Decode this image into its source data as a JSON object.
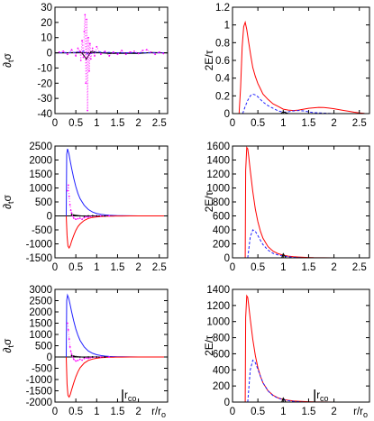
{
  "chart_data": [
    {
      "type": "line",
      "ylabel": "∂tσ",
      "xlabel": "",
      "xlim": [
        0,
        2.7
      ],
      "ylim": [
        -40,
        30
      ],
      "xticks": [
        0,
        0.5,
        1,
        1.5,
        2,
        2.5
      ],
      "xtick_labels": [
        "0",
        "0.5",
        "1",
        "1.5",
        "2",
        "2.5"
      ],
      "yticks": [
        -40,
        -30,
        -20,
        -10,
        0,
        10,
        20,
        30
      ],
      "ytick_labels": [
        "-40",
        "-30",
        "-20",
        "-10",
        "0",
        "10",
        "20",
        "30"
      ],
      "series": [
        {
          "color": "#000000",
          "style": "solid",
          "x": [
            0,
            0.25,
            0.5,
            0.62,
            0.7,
            0.75,
            0.8,
            0.85,
            0.9,
            1,
            1.3,
            1.6,
            2,
            2.3,
            2.7
          ],
          "y": [
            0,
            0,
            0.2,
            0.5,
            -2,
            -4.2,
            -2,
            0.5,
            1,
            0.3,
            -0.5,
            -0.3,
            -0.5,
            0.2,
            0
          ]
        },
        {
          "color": "#2020ff",
          "style": "dashed",
          "x": [
            0,
            0.5,
            0.7,
            0.8,
            1,
            1.5,
            2.7
          ],
          "y": [
            0,
            0.2,
            1,
            -1,
            0.5,
            0,
            0
          ]
        },
        {
          "color": "#ff00ff",
          "style": "dots",
          "x": [
            0.1,
            0.2,
            0.3,
            0.4,
            0.5,
            0.55,
            0.6,
            0.62,
            0.65,
            0.68,
            0.7,
            0.72,
            0.74,
            0.76,
            0.78,
            0.8,
            0.82,
            0.84,
            0.86,
            0.9,
            0.95,
            1.0,
            1.1,
            1.2,
            1.3,
            1.4,
            1.5,
            1.6,
            1.7,
            1.8,
            1.9,
            2.0,
            2.1,
            2.2,
            2.3,
            2.4,
            2.5,
            2.6
          ],
          "y": [
            0.5,
            1,
            -1,
            2,
            -2,
            3,
            1,
            -5,
            8,
            -3,
            14,
            25,
            -20,
            22,
            -38,
            10,
            -12,
            6,
            -4,
            3,
            -2,
            4,
            -1,
            1,
            -2,
            0.5,
            -1,
            1.5,
            -1,
            0.5,
            1,
            -0.5,
            1.5,
            2,
            0.5,
            -1,
            0.5,
            -0.5
          ]
        }
      ]
    },
    {
      "type": "line",
      "ylabel": "2E/τ",
      "xlabel": "",
      "xlim": [
        0,
        2.7
      ],
      "ylim": [
        0,
        1.2
      ],
      "xticks": [
        0,
        0.5,
        1,
        1.5,
        2,
        2.5
      ],
      "xtick_labels": [
        "0",
        "0.5",
        "1",
        "1.5",
        "2",
        "2.5"
      ],
      "yticks": [
        0,
        0.2,
        0.4,
        0.6,
        0.8,
        1,
        1.2
      ],
      "ytick_labels": [
        "0",
        "0.2",
        "0.4",
        "0.6",
        "0.8",
        "1",
        "1.2"
      ],
      "series": [
        {
          "color": "#ff0000",
          "style": "solid",
          "x": [
            0.13,
            0.16,
            0.19,
            0.22,
            0.25,
            0.28,
            0.32,
            0.36,
            0.4,
            0.45,
            0.5,
            0.55,
            0.6,
            0.7,
            0.8,
            0.9,
            1.0,
            1.1,
            1.2,
            1.3,
            1.4,
            1.5,
            1.6,
            1.7,
            1.8,
            1.9,
            2.0,
            2.1,
            2.2,
            2.3,
            2.4,
            2.5,
            2.6
          ],
          "y": [
            0,
            0.3,
            0.75,
            0.98,
            1.03,
            0.95,
            0.8,
            0.65,
            0.52,
            0.42,
            0.34,
            0.28,
            0.22,
            0.16,
            0.11,
            0.08,
            0.05,
            0.04,
            0.035,
            0.04,
            0.05,
            0.06,
            0.065,
            0.07,
            0.068,
            0.062,
            0.055,
            0.045,
            0.035,
            0.025,
            0.015,
            0.008,
            0.003
          ]
        },
        {
          "color": "#2020ff",
          "style": "dashed",
          "x": [
            0.2,
            0.25,
            0.3,
            0.35,
            0.4,
            0.45,
            0.5,
            0.55,
            0.6,
            0.7,
            0.8,
            0.9,
            1.0,
            1.1,
            1.2,
            1.3,
            1.4,
            1.5,
            1.6,
            1.8,
            2.0
          ],
          "y": [
            0,
            0.08,
            0.15,
            0.2,
            0.22,
            0.21,
            0.19,
            0.16,
            0.13,
            0.09,
            0.06,
            0.03,
            0.015,
            0.02,
            0.03,
            0.035,
            0.03,
            0.02,
            0.01,
            0.005,
            0
          ]
        },
        {
          "color": "#000000",
          "style": "solid",
          "x": [
            0.95,
            1.0,
            1.05,
            1.1
          ],
          "y": [
            0,
            0.02,
            0.01,
            0
          ]
        }
      ]
    },
    {
      "type": "line",
      "ylabel": "∂tσ",
      "xlabel": "",
      "xlim": [
        0,
        2.7
      ],
      "ylim": [
        -1500,
        2500
      ],
      "xticks": [
        0,
        0.5,
        1,
        1.5,
        2,
        2.5
      ],
      "xtick_labels": [
        "0",
        "0.5",
        "1",
        "1.5",
        "2",
        "2.5"
      ],
      "yticks": [
        -1500,
        -1000,
        -500,
        0,
        500,
        1000,
        1500,
        2000,
        2500
      ],
      "ytick_labels": [
        "-1500",
        "-1000",
        "-500",
        "0",
        "500",
        "1000",
        "1500",
        "2000",
        "2500"
      ],
      "series": [
        {
          "color": "#2020ff",
          "style": "solid",
          "x": [
            0.27,
            0.28,
            0.3,
            0.33,
            0.36,
            0.4,
            0.45,
            0.5,
            0.55,
            0.6,
            0.7,
            0.8,
            0.9,
            1.0,
            1.1,
            1.2,
            1.3,
            1.4,
            1.5,
            1.6,
            1.8,
            2.0,
            2.7
          ],
          "y": [
            0,
            2200,
            2400,
            2250,
            2000,
            1700,
            1350,
            1050,
            800,
            620,
            380,
            230,
            140,
            85,
            55,
            35,
            22,
            15,
            10,
            7,
            3,
            1,
            0
          ]
        },
        {
          "color": "#ff0000",
          "style": "solid",
          "x": [
            0.27,
            0.29,
            0.31,
            0.34,
            0.37,
            0.4,
            0.45,
            0.5,
            0.55,
            0.6,
            0.7,
            0.8,
            0.9,
            1.0,
            1.1,
            1.2,
            1.3,
            1.4,
            1.5,
            1.6,
            1.8,
            2.0,
            2.7
          ],
          "y": [
            0,
            -700,
            -1080,
            -1150,
            -1050,
            -900,
            -700,
            -520,
            -380,
            -290,
            -160,
            -90,
            -55,
            -35,
            -20,
            -12,
            -8,
            -5,
            -3,
            -2,
            -1,
            0,
            0
          ]
        },
        {
          "color": "#ff00ff",
          "style": "dots",
          "x": [
            0.3,
            0.32,
            0.34,
            0.36,
            0.38,
            0.4,
            0.42,
            0.45,
            0.5,
            0.55,
            0.6,
            0.65,
            0.7,
            0.75,
            0.8,
            0.85,
            0.9,
            1.0,
            1.1,
            1.2,
            1.3
          ],
          "y": [
            900,
            1100,
            700,
            400,
            200,
            100,
            0,
            -80,
            -120,
            -100,
            -80,
            -120,
            -60,
            -30,
            -50,
            -20,
            -10,
            -5,
            0,
            0,
            0
          ]
        },
        {
          "color": "#000000",
          "style": "dots",
          "x": [
            0.4,
            0.45,
            0.5,
            0.55,
            0.6,
            0.7,
            0.8,
            0.9,
            1.0,
            1.2
          ],
          "y": [
            50,
            30,
            20,
            10,
            0,
            -10,
            0,
            5,
            0,
            0
          ]
        }
      ]
    },
    {
      "type": "line",
      "ylabel": "2E/τ",
      "xlabel": "",
      "xlim": [
        0,
        2.7
      ],
      "ylim": [
        0,
        1600
      ],
      "xticks": [
        0,
        0.5,
        1,
        1.5,
        2,
        2.5
      ],
      "xtick_labels": [
        "0",
        "0.5",
        "1",
        "1.5",
        "2",
        "2.5"
      ],
      "yticks": [
        0,
        200,
        400,
        600,
        800,
        1000,
        1200,
        1400,
        1600
      ],
      "ytick_labels": [
        "0",
        "200",
        "400",
        "600",
        "800",
        "1000",
        "1200",
        "1400",
        "1600"
      ],
      "series": [
        {
          "color": "#ff0000",
          "style": "solid",
          "x": [
            0.25,
            0.26,
            0.28,
            0.3,
            0.32,
            0.35,
            0.4,
            0.45,
            0.5,
            0.55,
            0.6,
            0.7,
            0.8,
            0.9,
            1.0,
            1.1,
            1.2,
            1.3,
            1.4,
            1.5,
            1.6,
            1.8,
            2.0,
            2.7
          ],
          "y": [
            0,
            1250,
            1580,
            1560,
            1450,
            1250,
            950,
            700,
            520,
            380,
            280,
            160,
            95,
            60,
            38,
            25,
            17,
            12,
            8,
            5,
            3,
            1,
            0,
            0
          ]
        },
        {
          "color": "#2020ff",
          "style": "dashed",
          "x": [
            0.3,
            0.35,
            0.4,
            0.45,
            0.5,
            0.55,
            0.6,
            0.7,
            0.8,
            0.9,
            1.0,
            1.1,
            1.2,
            1.4
          ],
          "y": [
            0,
            300,
            400,
            380,
            320,
            250,
            190,
            110,
            65,
            40,
            25,
            15,
            8,
            0
          ]
        },
        {
          "color": "#000000",
          "style": "solid",
          "x": [
            0.97,
            1.0,
            1.05
          ],
          "y": [
            0,
            60,
            0
          ]
        }
      ]
    },
    {
      "type": "line",
      "ylabel": "∂tσ",
      "xlabel": "r/ro",
      "xlim": [
        0,
        2.7
      ],
      "ylim": [
        -2000,
        3000
      ],
      "xticks": [
        0,
        0.5,
        1,
        1.5,
        2
      ],
      "xtick_labels": [
        "0",
        "0.5",
        "1",
        "1.5",
        "2"
      ],
      "yticks": [
        -2000,
        -1500,
        -1000,
        -500,
        0,
        500,
        1000,
        1500,
        2000,
        2500,
        3000
      ],
      "ytick_labels": [
        "-2000",
        "-1500",
        "-1000",
        "-500",
        "0",
        "500",
        "1000",
        "1500",
        "2000",
        "2500",
        "3000"
      ],
      "annotation": "rco",
      "annotation_x": 1.62,
      "series": [
        {
          "color": "#2020ff",
          "style": "solid",
          "x": [
            0.27,
            0.28,
            0.3,
            0.33,
            0.36,
            0.4,
            0.45,
            0.5,
            0.55,
            0.6,
            0.7,
            0.8,
            0.9,
            1.0,
            1.1,
            1.2,
            1.3,
            1.4,
            1.5,
            1.6,
            1.8,
            2.0,
            2.7
          ],
          "y": [
            0,
            2500,
            2750,
            2600,
            2350,
            2000,
            1600,
            1250,
            960,
            740,
            450,
            270,
            165,
            100,
            65,
            40,
            26,
            17,
            11,
            7,
            3,
            1,
            0
          ]
        },
        {
          "color": "#ff0000",
          "style": "solid",
          "x": [
            0.27,
            0.29,
            0.31,
            0.34,
            0.37,
            0.4,
            0.45,
            0.5,
            0.55,
            0.6,
            0.7,
            0.8,
            0.9,
            1.0,
            1.1,
            1.2,
            1.3,
            1.4,
            1.5,
            1.6,
            1.8,
            2.0,
            2.7
          ],
          "y": [
            0,
            -1200,
            -1700,
            -1780,
            -1650,
            -1450,
            -1150,
            -880,
            -650,
            -480,
            -270,
            -150,
            -90,
            -55,
            -33,
            -20,
            -12,
            -8,
            -5,
            -3,
            -1,
            0,
            0
          ]
        },
        {
          "color": "#ff00ff",
          "style": "dots",
          "x": [
            0.3,
            0.32,
            0.34,
            0.36,
            0.38,
            0.4,
            0.42,
            0.45,
            0.5,
            0.55,
            0.6,
            0.65,
            0.7,
            0.75,
            0.8,
            0.85,
            0.9,
            1.0,
            1.1,
            1.2,
            1.3
          ],
          "y": [
            1500,
            1200,
            800,
            450,
            250,
            120,
            20,
            -100,
            -180,
            -150,
            -100,
            -140,
            -70,
            -40,
            -60,
            -30,
            -15,
            -5,
            0,
            0,
            0
          ]
        },
        {
          "color": "#000000",
          "style": "dots",
          "x": [
            0.4,
            0.45,
            0.5,
            0.55,
            0.6,
            0.7,
            0.8,
            0.9,
            1.0,
            1.2
          ],
          "y": [
            60,
            40,
            20,
            10,
            0,
            -10,
            0,
            5,
            0,
            0
          ]
        }
      ]
    },
    {
      "type": "line",
      "ylabel": "2E/τ",
      "xlabel": "r/ro",
      "xlim": [
        0,
        2.7
      ],
      "ylim": [
        0,
        1400
      ],
      "xticks": [
        0,
        0.5,
        1,
        1.5,
        2
      ],
      "xtick_labels": [
        "0",
        "0.5",
        "1",
        "1.5",
        "2"
      ],
      "yticks": [
        0,
        200,
        400,
        600,
        800,
        1000,
        1200,
        1400
      ],
      "ytick_labels": [
        "0",
        "200",
        "400",
        "600",
        "800",
        "1000",
        "1200",
        "1400"
      ],
      "annotation": "rco",
      "annotation_x": 1.62,
      "series": [
        {
          "color": "#ff0000",
          "style": "solid",
          "x": [
            0.25,
            0.26,
            0.28,
            0.3,
            0.32,
            0.35,
            0.4,
            0.45,
            0.5,
            0.55,
            0.6,
            0.7,
            0.8,
            0.9,
            1.0,
            1.1,
            1.2,
            1.3,
            1.4,
            1.5,
            1.6,
            1.8,
            2.0,
            2.7
          ],
          "y": [
            0,
            1050,
            1320,
            1300,
            1200,
            1030,
            780,
            580,
            430,
            320,
            240,
            140,
            85,
            52,
            33,
            22,
            15,
            10,
            7,
            4,
            2,
            1,
            0,
            0
          ]
        },
        {
          "color": "#2020ff",
          "style": "dashed",
          "x": [
            0.3,
            0.35,
            0.4,
            0.45,
            0.5,
            0.55,
            0.6,
            0.7,
            0.8,
            0.9,
            1.0,
            1.1,
            1.2,
            1.4
          ],
          "y": [
            0,
            400,
            520,
            490,
            410,
            320,
            240,
            140,
            80,
            48,
            30,
            18,
            9,
            0
          ]
        },
        {
          "color": "#000000",
          "style": "solid",
          "x": [
            0.97,
            1.0,
            1.05
          ],
          "y": [
            0,
            50,
            0
          ]
        }
      ]
    }
  ]
}
